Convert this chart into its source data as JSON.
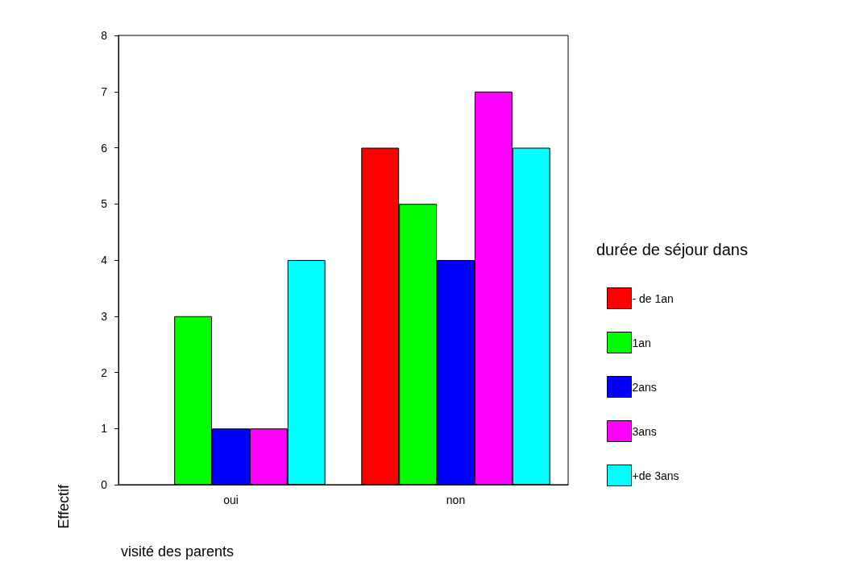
{
  "chart_data": {
    "type": "bar",
    "xlabel": "visité des parents",
    "ylabel": "Effectif",
    "legend_title": "durée de séjour dans",
    "categories": [
      "oui",
      "non"
    ],
    "series": [
      {
        "name": "- de 1an",
        "color": "#ff0000",
        "values": [
          null,
          6
        ]
      },
      {
        "name": "1an",
        "color": "#00ff00",
        "values": [
          3,
          5
        ]
      },
      {
        "name": "2ans",
        "color": "#0000ff",
        "values": [
          1,
          4
        ]
      },
      {
        "name": "3ans",
        "color": "#ff00ff",
        "values": [
          1,
          7
        ]
      },
      {
        "name": "+de 3ans",
        "color": "#00ffff",
        "values": [
          4,
          6
        ]
      }
    ],
    "ylim": [
      0,
      8
    ],
    "yticks": [
      0,
      1,
      2,
      3,
      4,
      5,
      6,
      7,
      8
    ],
    "grid": false,
    "legend": "right"
  }
}
